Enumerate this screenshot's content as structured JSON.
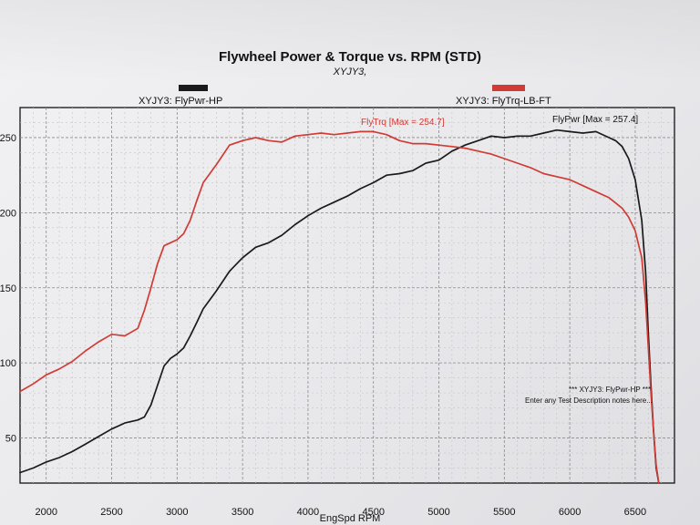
{
  "chart_data": {
    "type": "line",
    "title": "Flywheel Power & Torque vs. RPM (STD)",
    "subtitle": "XYJY3,",
    "xlabel": "EngSpd RPM",
    "ylabel": "",
    "xlim": [
      1800,
      6800
    ],
    "ylim": [
      20,
      270
    ],
    "x_ticks": [
      "2000",
      "2500",
      "3000",
      "3500",
      "4000",
      "4500",
      "5000",
      "5500",
      "6000",
      "6500"
    ],
    "y_ticks": [
      "50",
      "100",
      "150",
      "200",
      "250"
    ],
    "grid": true,
    "legend": "top",
    "series": [
      {
        "name": "XYJY3: FlyPwr-HP",
        "color": "#1a1a1a",
        "x": [
          1800,
          1900,
          2000,
          2100,
          2200,
          2300,
          2400,
          2500,
          2600,
          2700,
          2750,
          2800,
          2850,
          2900,
          2950,
          3000,
          3050,
          3100,
          3150,
          3200,
          3300,
          3400,
          3500,
          3600,
          3700,
          3800,
          3900,
          4000,
          4100,
          4200,
          4300,
          4400,
          4500,
          4600,
          4700,
          4800,
          4900,
          5000,
          5100,
          5200,
          5300,
          5400,
          5500,
          5600,
          5700,
          5800,
          5900,
          6000,
          6100,
          6200,
          6300,
          6350,
          6400,
          6450,
          6500,
          6550,
          6580,
          6600,
          6620,
          6640,
          6660,
          6680
        ],
        "y": [
          27,
          30,
          34,
          37,
          41,
          46,
          51,
          56,
          60,
          62,
          64,
          72,
          85,
          98,
          103,
          106,
          110,
          118,
          127,
          136,
          148,
          161,
          170,
          177,
          180,
          185,
          192,
          198,
          203,
          207,
          211,
          216,
          220,
          225,
          226,
          228,
          233,
          235,
          241,
          245,
          248,
          251,
          250,
          251,
          251,
          253,
          255,
          254,
          253,
          254,
          250,
          248,
          244,
          236,
          222,
          195,
          160,
          120,
          85,
          55,
          30,
          20
        ]
      },
      {
        "name": "XYJY3: FlyTrq-LB-FT",
        "color": "#d13b35",
        "x": [
          1800,
          1900,
          2000,
          2100,
          2200,
          2300,
          2400,
          2500,
          2600,
          2700,
          2750,
          2800,
          2850,
          2900,
          2950,
          3000,
          3050,
          3100,
          3150,
          3200,
          3300,
          3400,
          3500,
          3600,
          3700,
          3800,
          3900,
          4000,
          4100,
          4200,
          4300,
          4400,
          4500,
          4600,
          4700,
          4800,
          4900,
          5000,
          5100,
          5200,
          5300,
          5400,
          5500,
          5600,
          5700,
          5800,
          5900,
          6000,
          6100,
          6200,
          6300,
          6400,
          6450,
          6500,
          6550,
          6580,
          6600,
          6620,
          6640,
          6660,
          6680
        ],
        "y": [
          81,
          86,
          92,
          96,
          101,
          108,
          114,
          119,
          118,
          123,
          135,
          150,
          166,
          178,
          180,
          182,
          186,
          195,
          208,
          220,
          232,
          245,
          248,
          250,
          248,
          247,
          251,
          252,
          253,
          252,
          253,
          254,
          254,
          252,
          248,
          246,
          246,
          245,
          244,
          243,
          241,
          239,
          236,
          233,
          230,
          226,
          224,
          222,
          218,
          214,
          210,
          203,
          197,
          188,
          170,
          140,
          110,
          80,
          55,
          32,
          20
        ]
      }
    ],
    "annotations": [
      {
        "text": "FlyTrq [Max = 254.7]",
        "color": "#d13b35"
      },
      {
        "text": "FlyPwr [Max = 257.4]",
        "color": "#1a1a1a"
      }
    ],
    "notes": [
      "*** XYJY3: FlyPwr-HP ***",
      "Enter any Test Description notes here..."
    ]
  }
}
